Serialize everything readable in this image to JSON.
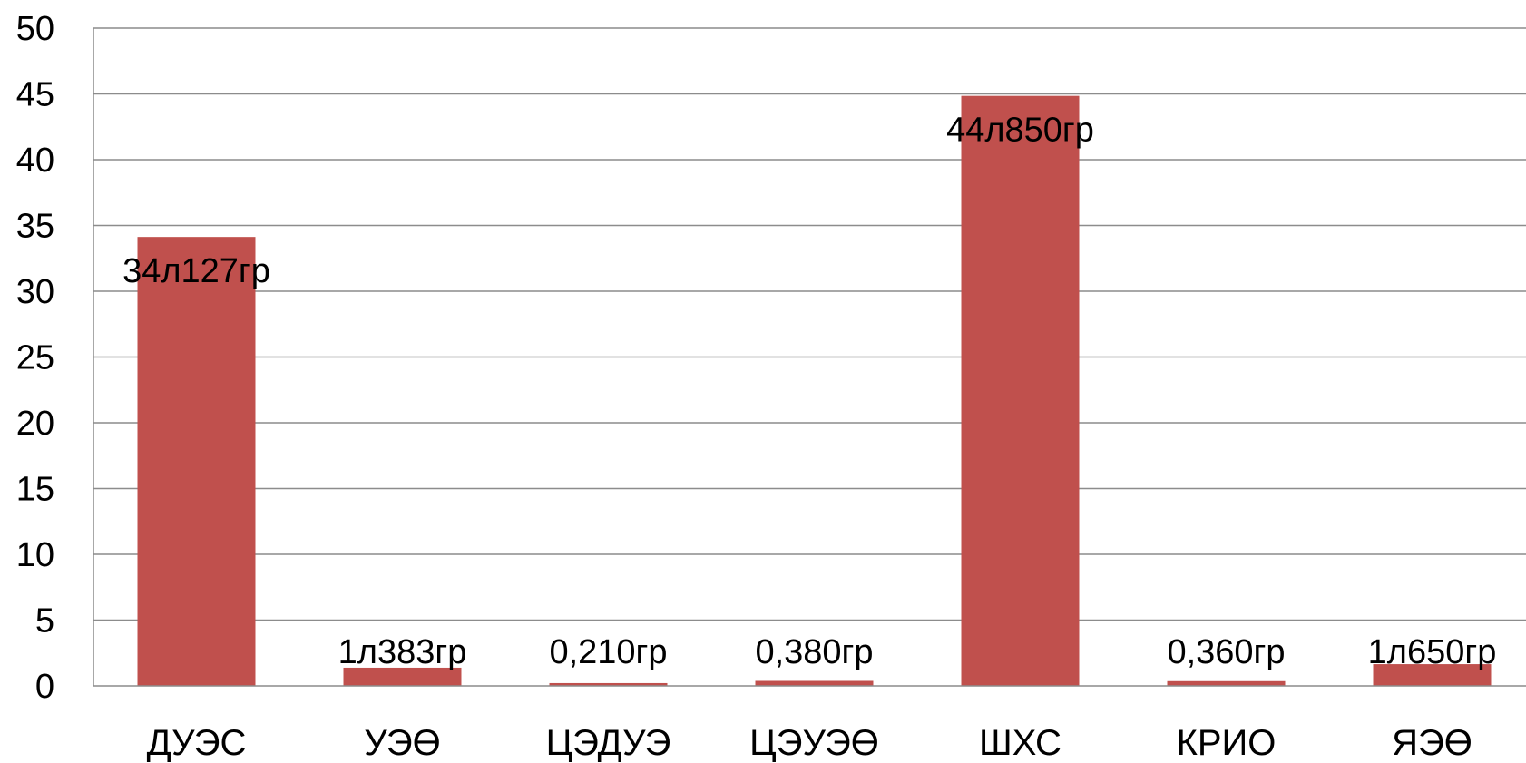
{
  "chart_data": {
    "type": "bar",
    "categories": [
      "ДУЭС",
      "УЭӨ",
      "ЦЭДУЭ",
      "ЦЭУЭӨ",
      "ШХС",
      "КРИО",
      "ЯЭӨ"
    ],
    "values": [
      34.127,
      1.383,
      0.21,
      0.38,
      44.85,
      0.36,
      1.65
    ],
    "data_labels": [
      "34л127гр",
      "1л383гр",
      "0,210гр",
      "0,380гр",
      "44л850гр",
      "0,360гр",
      "1л650гр"
    ],
    "yticks": [
      "0",
      "5",
      "10",
      "15",
      "20",
      "25",
      "30",
      "35",
      "40",
      "45",
      "50"
    ],
    "ylim": [
      0,
      50
    ],
    "grid": true,
    "bar_color": "#c0504d",
    "grid_color": "#8c8c8c",
    "title": "",
    "xlabel": "",
    "ylabel": ""
  }
}
